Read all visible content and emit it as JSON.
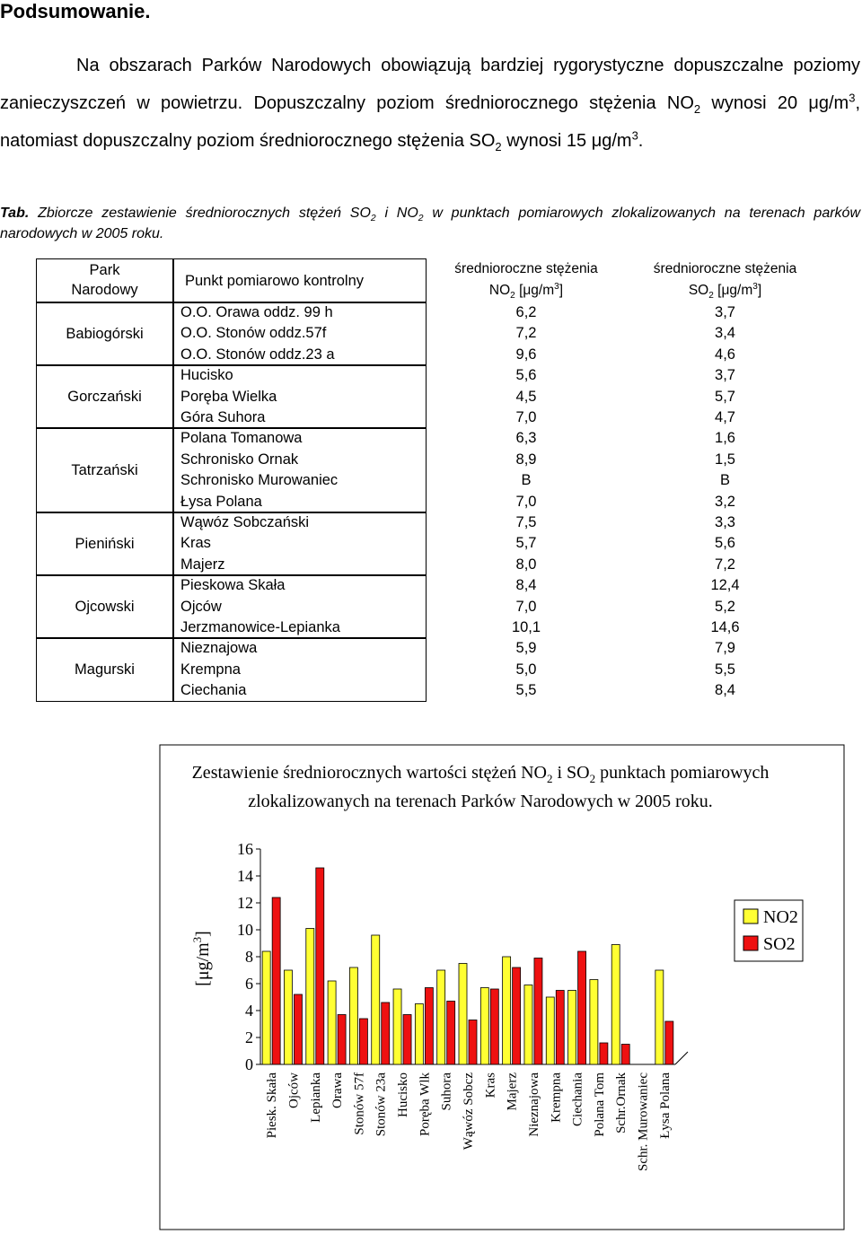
{
  "heading": "Podsumowanie.",
  "paragraph": [
    "Na obszarach Parków Narodowych obowiązują bardziej rygorystyczne dopuszczalne poziomy zanieczyszczeń w powietrzu. Dopuszczalny poziom średniorocznego stężenia NO",
    "2",
    " wynosi 20 μg/m",
    "3",
    ", natomiast dopuszczalny poziom średniorocznego stężenia SO",
    "2",
    " wynosi 15 μg/m",
    "3",
    "."
  ],
  "caption": [
    "Tab.",
    " Zbiorcze zestawienie średniorocznych stężeń SO",
    "2",
    " i NO",
    "2",
    " w punktach pomiarowych zlokalizowanych na terenach parków narodowych w 2005 roku."
  ],
  "table": {
    "header": {
      "park": [
        "Park",
        "Narodowy"
      ],
      "point": "Punkt pomiarowo kontrolny",
      "no2": [
        "średnioroczne stężenia",
        "NO",
        "2",
        " [μg/m",
        "3",
        "]"
      ],
      "so2": [
        "średnioroczne stężenia",
        "SO",
        "2",
        " [μg/m",
        "3",
        "]"
      ]
    },
    "groups": [
      {
        "park": "Babiogórski",
        "rows": [
          [
            "O.O. Orawa oddz. 99 h",
            "6,2",
            "3,7"
          ],
          [
            "O.O. Stonów oddz.57f",
            "7,2",
            "3,4"
          ],
          [
            "O.O. Stonów oddz.23 a",
            "9,6",
            "4,6"
          ]
        ]
      },
      {
        "park": "Gorczański",
        "rows": [
          [
            "Hucisko",
            "5,6",
            "3,7"
          ],
          [
            "Poręba Wielka",
            "4,5",
            "5,7"
          ],
          [
            "Góra Suhora",
            "7,0",
            "4,7"
          ]
        ]
      },
      {
        "park": "Tatrzański",
        "rows": [
          [
            "Polana Tomanowa",
            "6,3",
            "1,6"
          ],
          [
            "Schronisko Ornak",
            "8,9",
            "1,5"
          ],
          [
            "Schronisko Murowaniec",
            "B",
            "B"
          ],
          [
            "Łysa Polana",
            "7,0",
            "3,2"
          ]
        ]
      },
      {
        "park": "Pieniński",
        "rows": [
          [
            "Wąwóz Sobczański",
            "7,5",
            "3,3"
          ],
          [
            "Kras",
            "5,7",
            "5,6"
          ],
          [
            "Majerz",
            "8,0",
            "7,2"
          ]
        ]
      },
      {
        "park": "Ojcowski",
        "rows": [
          [
            "Pieskowa Skała",
            "8,4",
            "12,4"
          ],
          [
            "Ojców",
            "7,0",
            "5,2"
          ],
          [
            "Jerzmanowice-Lepianka",
            "10,1",
            "14,6"
          ]
        ]
      },
      {
        "park": "Magurski",
        "rows": [
          [
            "Nieznajowa",
            "5,9",
            "7,9"
          ],
          [
            "Krempna",
            "5,0",
            "5,5"
          ],
          [
            "Ciechania",
            "5,5",
            "8,4"
          ]
        ]
      }
    ]
  },
  "chart_data": {
    "type": "bar",
    "title": [
      "Zestawienie średniorocznych wartości stężeń NO",
      "2",
      " i SO",
      "2",
      "  punktach pomiarowych zlokalizowanych na terenach Parków Narodowych w 2005 roku."
    ],
    "ylabel": [
      "[μg/m",
      "3",
      "]"
    ],
    "categories": [
      "Piesk. Skała",
      "Ojców",
      "Lepianka",
      "Orawa",
      "Stonów 57f",
      "Stonów 23a",
      "Hucisko",
      "Poręba Wlk",
      "Suhora",
      "Wąwóz Sobcz",
      "Kras",
      "Majerz",
      "Nieznajowa",
      "Krempna",
      "Ciechania",
      "Polana Tom",
      "Schr.Ornak",
      "Schr. Murowaniec",
      "Łysa Polana"
    ],
    "series": [
      {
        "name": "NO2",
        "color": "#ffff33",
        "values": [
          8.4,
          7.0,
          10.1,
          6.2,
          7.2,
          9.6,
          5.6,
          4.5,
          7.0,
          7.5,
          5.7,
          8.0,
          5.9,
          5.0,
          5.5,
          6.3,
          8.9,
          null,
          7.0
        ]
      },
      {
        "name": "SO2",
        "color": "#ee1111",
        "values": [
          12.4,
          5.2,
          14.6,
          3.7,
          3.4,
          4.6,
          3.7,
          5.7,
          4.7,
          3.3,
          5.6,
          7.2,
          7.9,
          5.5,
          8.4,
          1.6,
          1.5,
          null,
          3.2
        ]
      }
    ],
    "ylim": [
      0,
      16
    ],
    "yticks": [
      0,
      2,
      4,
      6,
      8,
      10,
      12,
      14,
      16
    ],
    "grid": false,
    "legend": "right"
  }
}
